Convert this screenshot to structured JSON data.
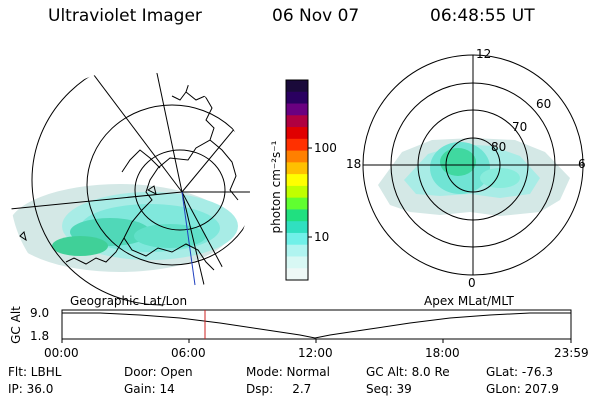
{
  "header": {
    "instrument": "Ultraviolet Imager",
    "date": "06 Nov 07",
    "time": "06:48:55 UT"
  },
  "left_panel": {
    "label": "Geographic Lat/Lon"
  },
  "right_panel": {
    "label": "Apex MLat/MLT",
    "mlt_labels": [
      "12",
      "18",
      "6",
      "0"
    ],
    "mlat_labels": [
      "60",
      "70",
      "80"
    ]
  },
  "colorbar": {
    "title": "photon cm⁻²s⁻¹",
    "ticks": [
      "100",
      "10"
    ],
    "colors": [
      "#1a0a3a",
      "#2a0060",
      "#6a0080",
      "#b00040",
      "#e00000",
      "#ff3000",
      "#ff8000",
      "#ffc000",
      "#ffff00",
      "#c0ff00",
      "#60ff30",
      "#20e080",
      "#30e0c0",
      "#70f0e8",
      "#b0f4f0",
      "#d8f8f4",
      "#eef8f6"
    ]
  },
  "altitude_plot": {
    "ylabel": "GC Alt",
    "y_ticks": [
      "9.0",
      "1.8"
    ],
    "x_ticks": [
      "00:00",
      "06:00",
      "12:00",
      "18:00",
      "23:59"
    ],
    "current_time_color": "#cc2020"
  },
  "status": {
    "flt": "Flt: LBHL",
    "ip": "IP: 36.0",
    "door": "Door: Open",
    "gain": "Gain: 14",
    "mode": "Mode: Normal",
    "dsp": "Dsp:     2.7",
    "gc_alt": "GC Alt: 8.0 Re",
    "seq": "Seq: 39",
    "glat": "GLat: -76.3",
    "glon": "GLon: 207.9"
  },
  "colors": {
    "aurora_light": "#d4e8e6",
    "aurora_mid": "#8ee8e0",
    "aurora_strong": "#30d0b0",
    "aurora_peak": "#40d868",
    "coast": "#000000",
    "meridian": "#2040c0"
  }
}
